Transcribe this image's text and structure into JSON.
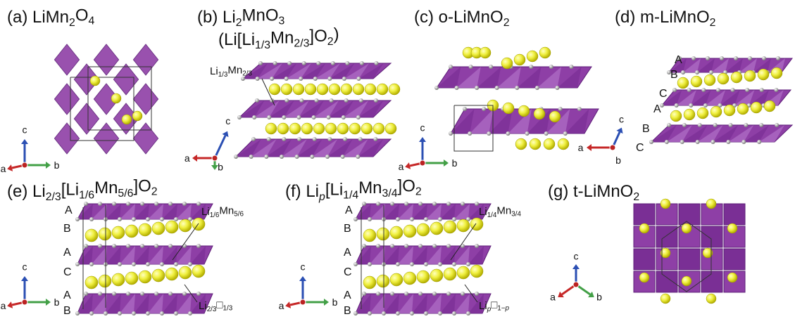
{
  "panels": [
    {
      "title": [
        {
          "text": "(a) LiMn"
        },
        {
          "sub": "2"
        },
        {
          "text": "O"
        },
        {
          "sub": "4"
        }
      ],
      "axes": [
        "a",
        "b",
        "c"
      ]
    },
    {
      "title": [
        {
          "text": "(b) Li"
        },
        {
          "sub": "2"
        },
        {
          "text": "MnO"
        },
        {
          "sub": "3"
        }
      ],
      "subtitle": [
        {
          "text": "(Li[Li"
        },
        {
          "sub": "1/3"
        },
        {
          "text": "Mn"
        },
        {
          "sub": "2/3"
        },
        {
          "text": "]O"
        },
        {
          "sub": "2"
        },
        {
          "text": ")"
        }
      ],
      "notes": [
        [
          {
            "text": "Li"
          },
          {
            "sub": "1/3"
          },
          {
            "text": "Mn"
          },
          {
            "sub": "2/3"
          }
        ]
      ],
      "axes": [
        "a",
        "b",
        "c"
      ]
    },
    {
      "title": [
        {
          "text": "(c) o-LiMnO"
        },
        {
          "sub": "2"
        }
      ],
      "axes": [
        "a",
        "b",
        "c"
      ]
    },
    {
      "title": [
        {
          "text": "(d) m-LiMnO"
        },
        {
          "sub": "2"
        }
      ],
      "layers": [
        "A",
        "B",
        "C",
        "A",
        "B",
        "C"
      ],
      "axes": [
        "a",
        "b",
        "c"
      ]
    },
    {
      "title": [
        {
          "text": "(e) Li"
        },
        {
          "sub": "2/3"
        },
        {
          "text": "[Li"
        },
        {
          "sub": "1/6"
        },
        {
          "text": "Mn"
        },
        {
          "sub": "5/6"
        },
        {
          "text": "]O"
        },
        {
          "sub": "2"
        }
      ],
      "notes": [
        [
          {
            "text": "Li"
          },
          {
            "sub": "1/6"
          },
          {
            "text": "Mn"
          },
          {
            "sub": "5/6"
          }
        ],
        [
          {
            "text": "Li"
          },
          {
            "sub": "2/3"
          },
          {
            "text": "□"
          },
          {
            "sub": "1/3"
          }
        ]
      ],
      "layers": [
        "A",
        "B",
        "A",
        "C",
        "A",
        "B"
      ],
      "axes": [
        "a",
        "b",
        "c"
      ]
    },
    {
      "title": [
        {
          "text": "(f) Li"
        },
        {
          "subit": "p"
        },
        {
          "text": "[Li"
        },
        {
          "sub": "1/4"
        },
        {
          "text": "Mn"
        },
        {
          "sub": "3/4"
        },
        {
          "text": "]O"
        },
        {
          "sub": "2"
        }
      ],
      "notes": [
        [
          {
            "text": "Li"
          },
          {
            "sub": "1/4"
          },
          {
            "text": "Mn"
          },
          {
            "sub": "3/4"
          }
        ],
        [
          {
            "text": "Li"
          },
          {
            "subit": "p"
          },
          {
            "text": "□"
          },
          {
            "sub": "1−"
          },
          {
            "subit": "p"
          }
        ]
      ],
      "layers": [
        "A",
        "B",
        "A",
        "C",
        "A",
        "B"
      ],
      "axes": [
        "a",
        "b",
        "c"
      ]
    },
    {
      "title": [
        {
          "text": "(g) t-LiMnO"
        },
        {
          "sub": "2"
        }
      ],
      "axes": [
        "a",
        "b",
        "c"
      ]
    }
  ]
}
